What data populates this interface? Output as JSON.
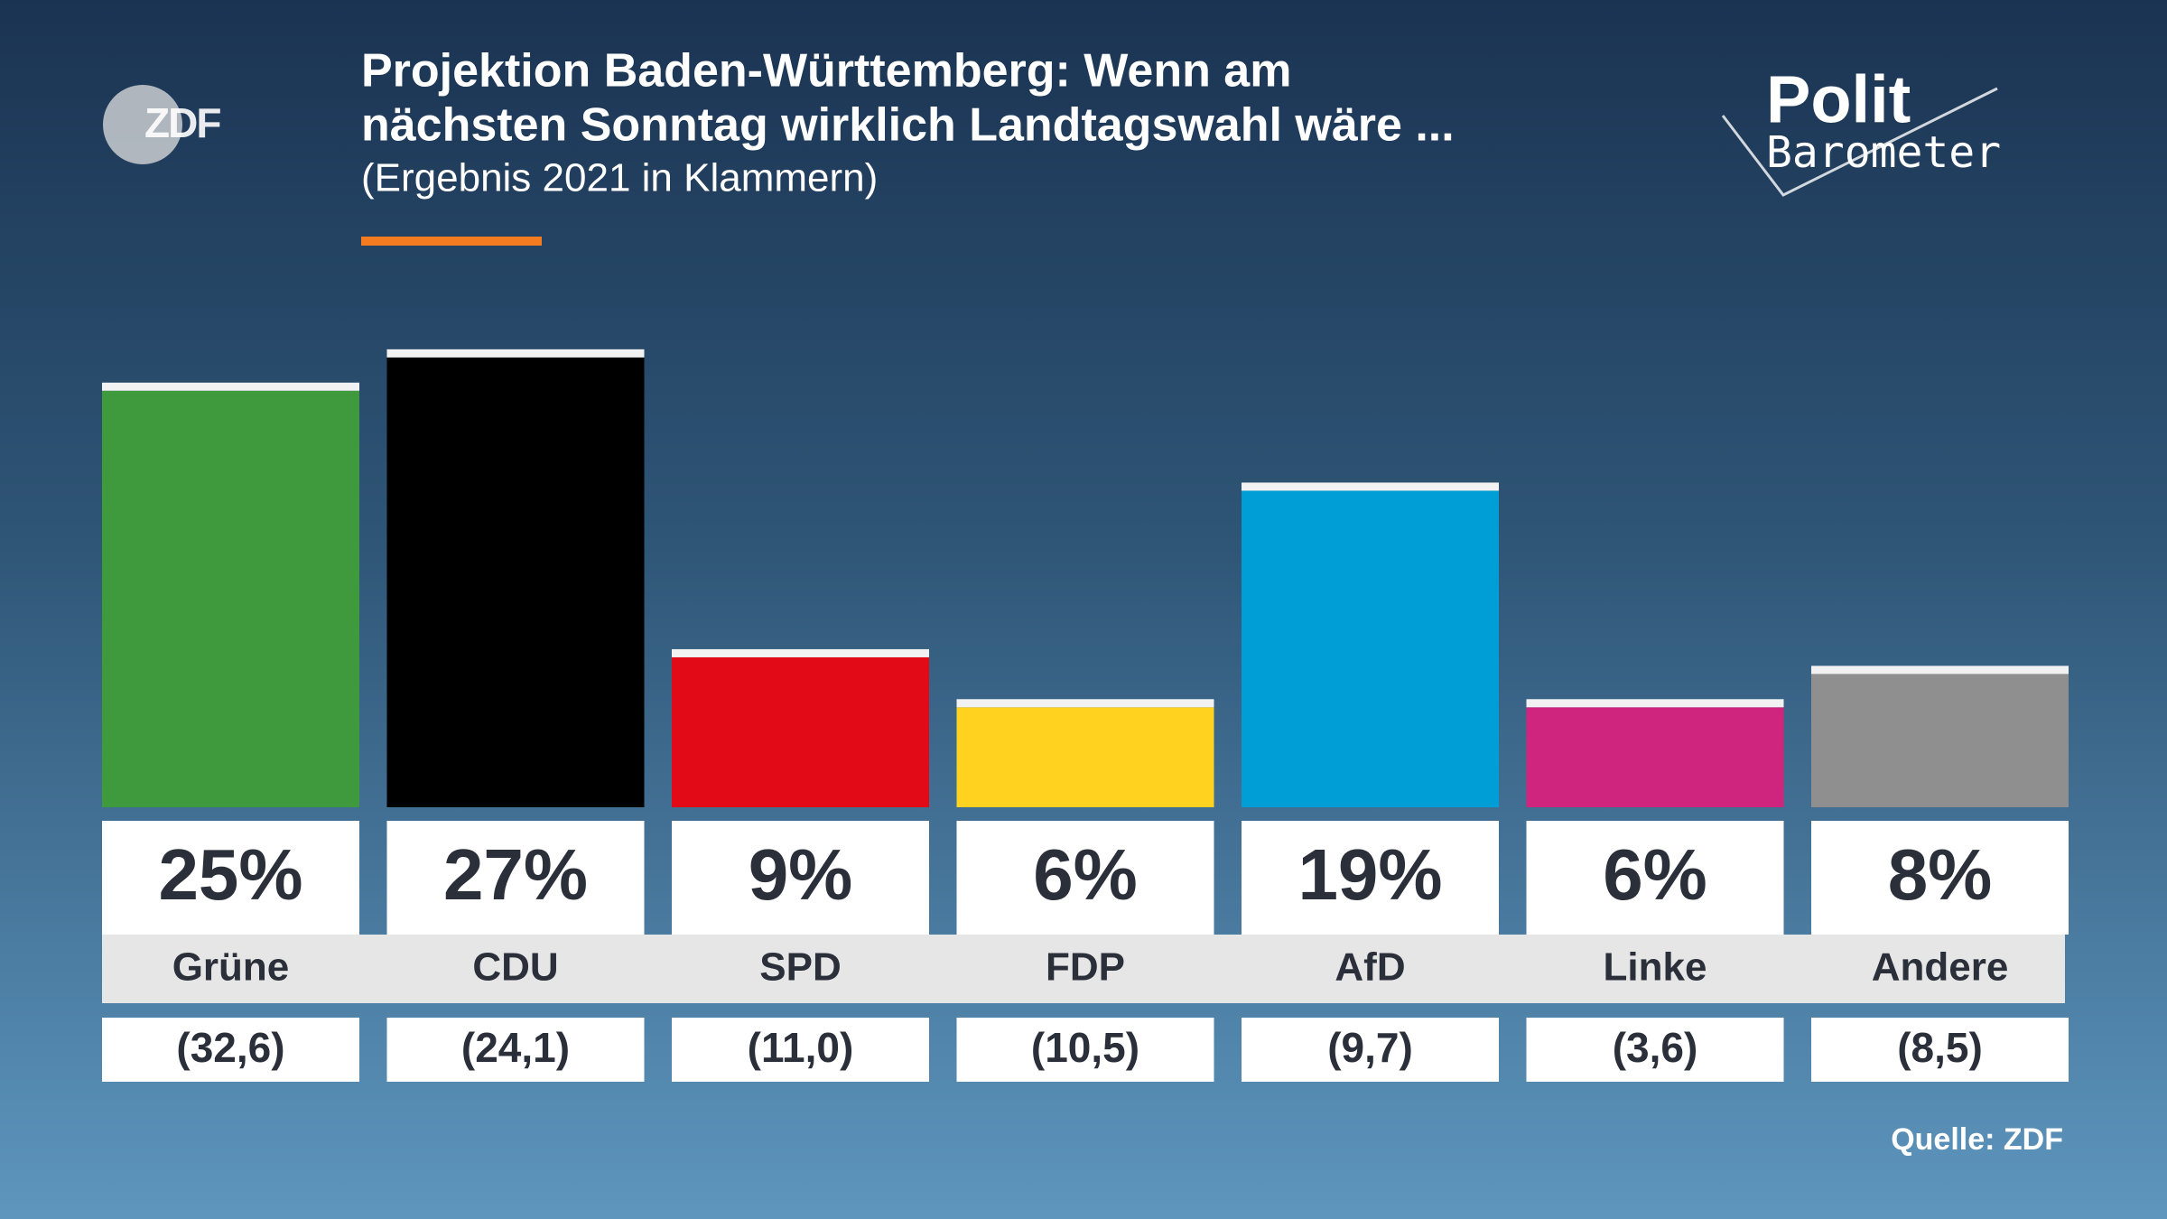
{
  "header": {
    "logo": "ZDF",
    "brand_top": "Polit",
    "brand_bottom": "Barometer"
  },
  "chart_data": {
    "type": "bar",
    "title_lines": [
      "Projektion Baden-Württemberg: Wenn am",
      "nächsten Sonntag wirklich Landtagswahl wäre ..."
    ],
    "subtitle": "(Ergebnis 2021 in Klammern)",
    "categories": [
      "Grüne",
      "CDU",
      "SPD",
      "FDP",
      "AfD",
      "Linke",
      "Andere"
    ],
    "values": [
      25,
      27,
      9,
      6,
      19,
      6,
      8
    ],
    "value_labels": [
      "25%",
      "27%",
      "9%",
      "6%",
      "19%",
      "6%",
      "8%"
    ],
    "colors": [
      "#3f9a3e",
      "#000000",
      "#e30a17",
      "#ffd21f",
      "#009ed6",
      "#d0257e",
      "#8f8f8f"
    ],
    "previous": [
      "(32,6)",
      "(24,1)",
      "(11,0)",
      "(10,5)",
      "(9,7)",
      "(3,6)",
      "(8,5)"
    ],
    "source": "Quelle: ZDF"
  }
}
